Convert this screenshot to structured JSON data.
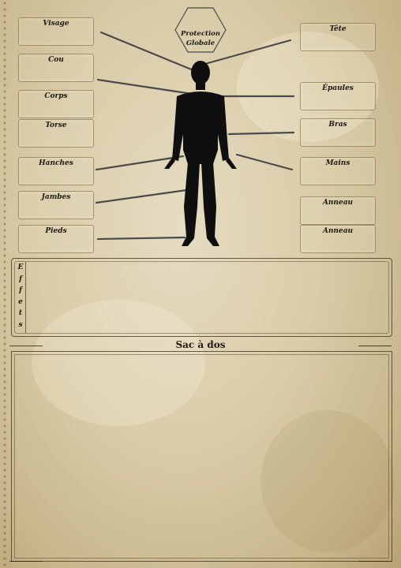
{
  "slots_left": [
    {
      "label": "Visage"
    },
    {
      "label": "Cou"
    },
    {
      "label": "Corps"
    },
    {
      "label": "Torse"
    },
    {
      "label": "Hanches"
    },
    {
      "label": "Jambes"
    },
    {
      "label": "Pieds"
    }
  ],
  "slots_right": [
    {
      "label": "Tête"
    },
    {
      "label": "Épaules"
    },
    {
      "label": "Bras"
    },
    {
      "label": "Mains"
    },
    {
      "label": "Anneau"
    },
    {
      "label": "Anneau"
    }
  ],
  "protection": {
    "line1": "Protection",
    "line2": "Globale"
  },
  "effects": {
    "letters": [
      "E",
      "f",
      "f",
      "e",
      "t",
      "s"
    ]
  },
  "backpack": {
    "title": "Sac à dos"
  },
  "colors": {
    "ink": "#1e1a14",
    "connector": "#4a4a4a",
    "silhouette": "#0f0f0f"
  }
}
